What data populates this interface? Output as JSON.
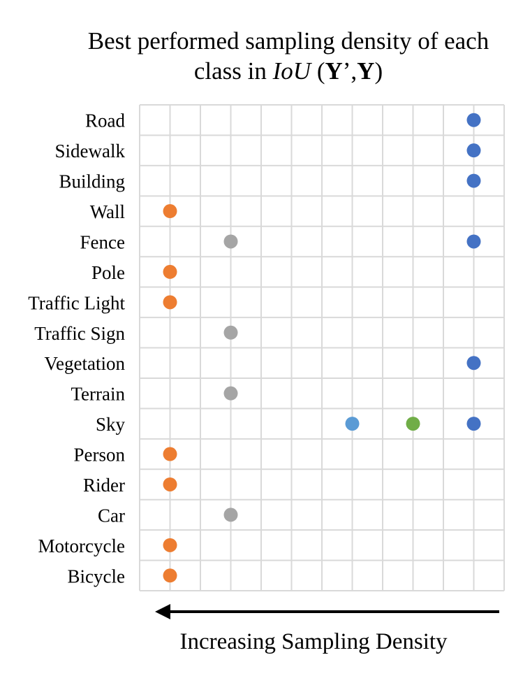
{
  "chart_data": {
    "type": "scatter",
    "title_line1": "Best performed sampling density of each",
    "title_line2": {
      "prefix": "class in ",
      "metric": "IoU",
      "open": " (",
      "arg1": "Y",
      "apostrophe": "’",
      "comma": ",",
      "arg2": "Y",
      "close": ")"
    },
    "xlabel": "Increasing Sampling Density",
    "x_direction": "right-to-left",
    "grid": true,
    "legend": "none",
    "columns": 6,
    "categories": [
      "Road",
      "Sidewalk",
      "Building",
      "Wall",
      "Fence",
      "Pole",
      "Traffic Light",
      "Traffic Sign",
      "Vegetation",
      "Terrain",
      "Sky",
      "Person",
      "Rider",
      "Car",
      "Motorcycle",
      "Bicycle"
    ],
    "series_colors": [
      "#ed7d31",
      "#a5a5a5",
      "#5b9bd5",
      "#70ad47",
      "#4472c4"
    ],
    "points": [
      {
        "category": "Road",
        "x": 6,
        "color": "#4472c4"
      },
      {
        "category": "Sidewalk",
        "x": 6,
        "color": "#4472c4"
      },
      {
        "category": "Building",
        "x": 6,
        "color": "#4472c4"
      },
      {
        "category": "Wall",
        "x": 1,
        "color": "#ed7d31"
      },
      {
        "category": "Fence",
        "x": 2,
        "color": "#a5a5a5"
      },
      {
        "category": "Fence",
        "x": 6,
        "color": "#4472c4"
      },
      {
        "category": "Pole",
        "x": 1,
        "color": "#ed7d31"
      },
      {
        "category": "Traffic Light",
        "x": 1,
        "color": "#ed7d31"
      },
      {
        "category": "Traffic Sign",
        "x": 2,
        "color": "#a5a5a5"
      },
      {
        "category": "Vegetation",
        "x": 6,
        "color": "#4472c4"
      },
      {
        "category": "Terrain",
        "x": 2,
        "color": "#a5a5a5"
      },
      {
        "category": "Sky",
        "x": 4,
        "color": "#5b9bd5"
      },
      {
        "category": "Sky",
        "x": 5,
        "color": "#70ad47"
      },
      {
        "category": "Sky",
        "x": 6,
        "color": "#4472c4"
      },
      {
        "category": "Person",
        "x": 1,
        "color": "#ed7d31"
      },
      {
        "category": "Rider",
        "x": 1,
        "color": "#ed7d31"
      },
      {
        "category": "Car",
        "x": 2,
        "color": "#a5a5a5"
      },
      {
        "category": "Motorcycle",
        "x": 1,
        "color": "#ed7d31"
      },
      {
        "category": "Bicycle",
        "x": 1,
        "color": "#ed7d31"
      }
    ]
  }
}
